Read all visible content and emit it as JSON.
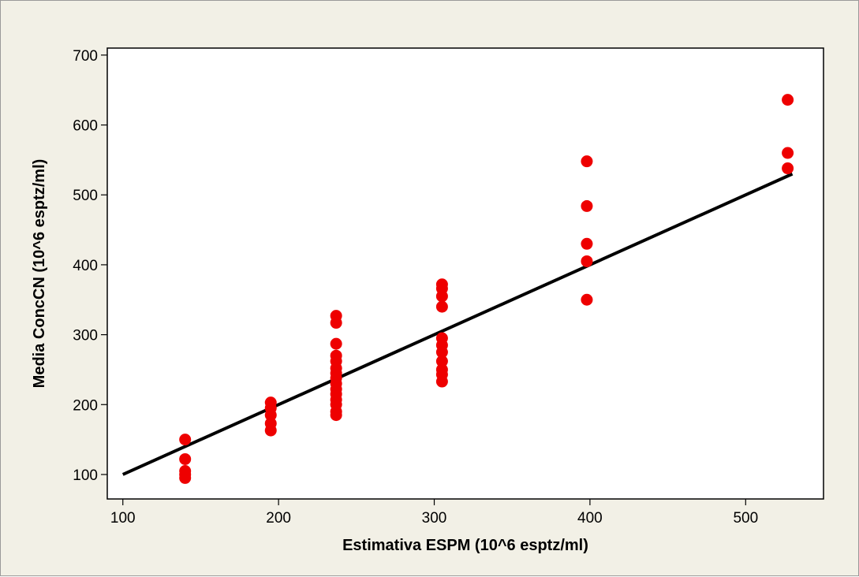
{
  "chart_data": {
    "type": "scatter",
    "title": "",
    "xlabel": "Estimativa ESPM (10^6 esptz/ml)",
    "ylabel": "Media ConcCN (10^6 esptz/ml)",
    "xlim": [
      90,
      550
    ],
    "ylim": [
      65,
      710
    ],
    "x_ticks": [
      100,
      200,
      300,
      400,
      500
    ],
    "y_ticks": [
      100,
      200,
      300,
      400,
      500,
      600,
      700
    ],
    "grid": false,
    "legend": "none",
    "colors": {
      "points": "#ee0000",
      "fit_line": "#000000",
      "background": "#f2f0e6",
      "plot_area": "#ffffff"
    },
    "series": [
      {
        "points": [
          [
            140,
            150
          ],
          [
            140,
            122
          ],
          [
            140,
            105
          ],
          [
            140,
            100
          ],
          [
            140,
            95
          ],
          [
            195,
            203
          ],
          [
            195,
            195
          ],
          [
            195,
            185
          ],
          [
            195,
            173
          ],
          [
            195,
            163
          ],
          [
            237,
            327
          ],
          [
            237,
            317
          ],
          [
            237,
            287
          ],
          [
            237,
            270
          ],
          [
            237,
            262
          ],
          [
            237,
            252
          ],
          [
            237,
            245
          ],
          [
            237,
            238
          ],
          [
            237,
            230
          ],
          [
            237,
            222
          ],
          [
            237,
            215
          ],
          [
            237,
            207
          ],
          [
            237,
            200
          ],
          [
            237,
            190
          ],
          [
            237,
            185
          ],
          [
            305,
            372
          ],
          [
            305,
            366
          ],
          [
            305,
            355
          ],
          [
            305,
            340
          ],
          [
            305,
            295
          ],
          [
            305,
            285
          ],
          [
            305,
            275
          ],
          [
            305,
            262
          ],
          [
            305,
            250
          ],
          [
            305,
            243
          ],
          [
            305,
            233
          ],
          [
            398,
            548
          ],
          [
            398,
            484
          ],
          [
            398,
            430
          ],
          [
            398,
            405
          ],
          [
            398,
            350
          ],
          [
            527,
            636
          ],
          [
            527,
            560
          ],
          [
            527,
            538
          ]
        ]
      }
    ],
    "fit_line": {
      "x": [
        100,
        530
      ],
      "y": [
        100,
        530
      ]
    }
  }
}
